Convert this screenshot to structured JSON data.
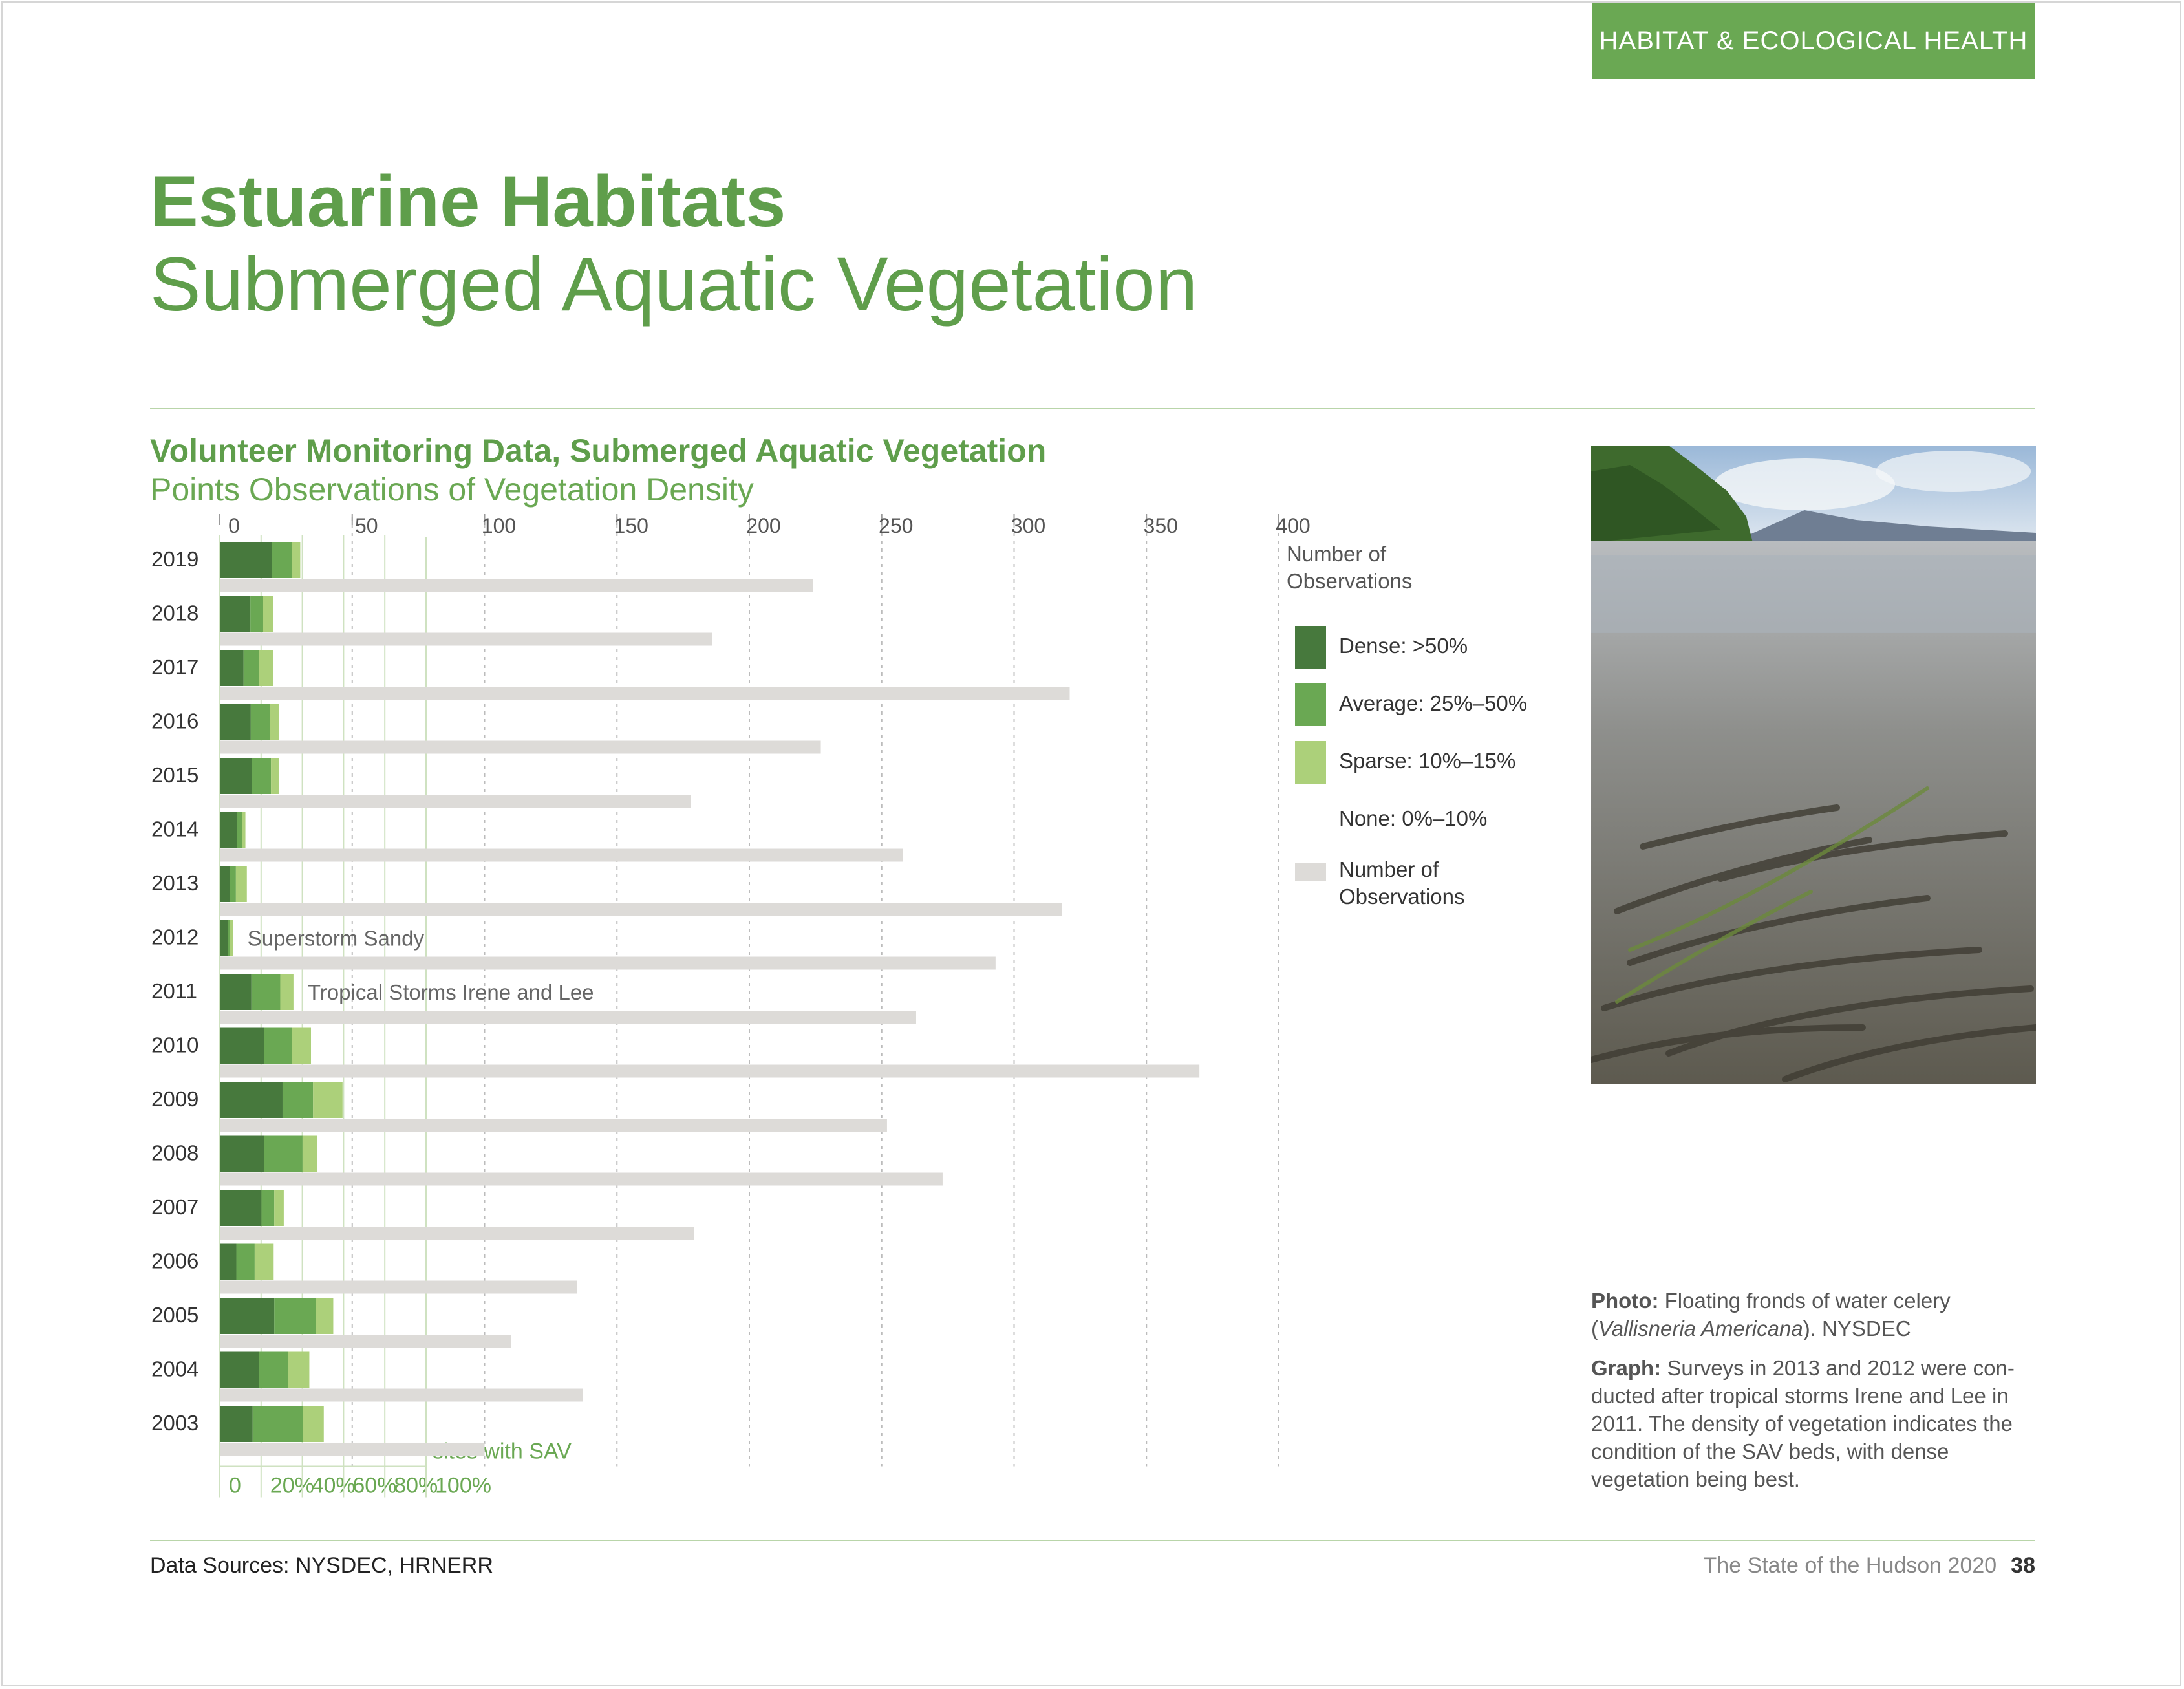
{
  "section_tag": "HABITAT & ECOLOGICAL HEALTH",
  "page_title": "Estuarine Habitats",
  "page_subtitle": "Submerged Aquatic Vegetation",
  "chart_title": "Volunteer Monitoring Data, Submerged Aquatic Vegetation",
  "chart_subtitle": "Points Observations of Vegetation Density",
  "chart_data": {
    "type": "bar",
    "orientation": "horizontal",
    "stacked": true,
    "categories": [
      "2019",
      "2018",
      "2017",
      "2016",
      "2015",
      "2014",
      "2013",
      "2012",
      "2011",
      "2010",
      "2009",
      "2008",
      "2007",
      "2006",
      "2005",
      "2004",
      "2003"
    ],
    "series": [
      {
        "name": "Dense: >50%",
        "axis": "percent",
        "color": "#47793d",
        "values": [
          25.3,
          14.8,
          11.5,
          15.0,
          15.6,
          8.3,
          4.8,
          3.8,
          15.3,
          21.5,
          30.4,
          21.5,
          20.2,
          8.0,
          26.4,
          19.1,
          15.9
        ]
      },
      {
        "name": "Average: 25%–50%",
        "axis": "percent",
        "color": "#6aa853",
        "values": [
          9.6,
          6.2,
          7.5,
          9.2,
          9.2,
          2.5,
          3.0,
          1.1,
          14.0,
          13.6,
          14.8,
          18.6,
          6.2,
          8.9,
          20.2,
          14.1,
          24.3
        ]
      },
      {
        "name": "Sparse: 10%–15%",
        "axis": "percent",
        "color": "#acd07a",
        "values": [
          4.1,
          4.8,
          6.8,
          4.6,
          3.8,
          1.6,
          5.3,
          1.6,
          6.4,
          9.1,
          14.3,
          7.0,
          4.6,
          9.2,
          8.4,
          10.2,
          10.2
        ]
      },
      {
        "name": "Number of Observations",
        "axis": "count",
        "color": "#dddbd8",
        "values": [
          224,
          186,
          321,
          227,
          178,
          258,
          318,
          293,
          263,
          370,
          252,
          273,
          179,
          135,
          110,
          137,
          100
        ]
      }
    ],
    "legend_extra": [
      "None: 0%–10%"
    ],
    "top_axis": {
      "ticks": [
        "0",
        "50",
        "100",
        "150",
        "200",
        "250",
        "300",
        "350",
        "400"
      ],
      "label": "Number of Observations",
      "range": [
        0,
        400
      ]
    },
    "bottom_axis": {
      "ticks": [
        "0",
        "20%",
        "40%",
        "60%",
        "80%",
        "100%"
      ],
      "label": "sites with SAV",
      "range": [
        0,
        100
      ]
    },
    "annotations": [
      {
        "category": "2012",
        "text": "Superstorm Sandy"
      },
      {
        "category": "2011",
        "text": "Tropical Storms Irene and Lee"
      }
    ],
    "legend_position": "right",
    "grid": true
  },
  "photo_alt": "Floating fronds of water celery",
  "caption": {
    "photo_label": "Photo:",
    "photo_text_1": "Floating fronds of water celery (",
    "photo_species": "Vallisneria Americana",
    "photo_text_2": "). NYSDEC",
    "graph_label": "Graph:",
    "graph_text": "Surveys in 2013 and 2012 were con-ducted after tropical storms Irene and Lee in 2011. The density of vegetation indicates the condition of the SAV beds, with dense vegetation being best."
  },
  "data_sources": "Data Sources: NYSDEC, HRNERR",
  "footer_title": "The State of the Hudson 2020",
  "page_number": "38"
}
